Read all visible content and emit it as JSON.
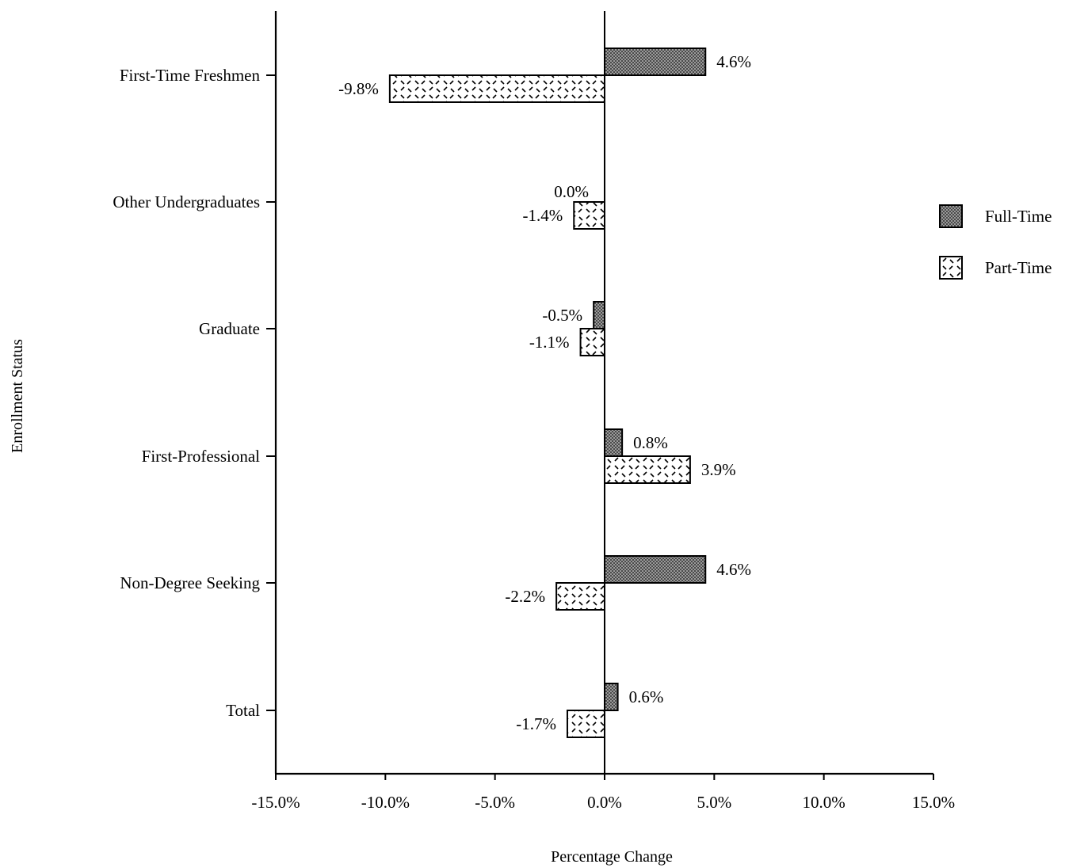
{
  "chart_data": {
    "type": "bar",
    "orientation": "horizontal",
    "categories": [
      "First-Time Freshmen",
      "Other Undergraduates",
      "Graduate",
      "First-Professional",
      "Non-Degree Seeking",
      "Total"
    ],
    "series": [
      {
        "name": "Full-Time",
        "values": [
          4.6,
          0.0,
          -0.5,
          0.8,
          4.6,
          0.6
        ],
        "labels": [
          "4.6%",
          "0.0%",
          "-0.5%",
          "0.8%",
          "4.6%",
          "0.6%"
        ],
        "fill": "dense-dot"
      },
      {
        "name": "Part-Time",
        "values": [
          -9.8,
          -1.4,
          -1.1,
          3.9,
          -2.2,
          -1.7
        ],
        "labels": [
          "-9.8%",
          "-1.4%",
          "-1.1%",
          "3.9%",
          "-2.2%",
          "-1.7%"
        ],
        "fill": "diagonal-dash"
      }
    ],
    "xlim": [
      -15,
      15
    ],
    "xticks": [
      -15,
      -10,
      -5,
      0,
      5,
      10,
      15
    ],
    "xtick_labels": [
      "-15.0%",
      "-10.0%",
      "-5.0%",
      "0.0%",
      "5.0%",
      "10.0%",
      "15.0%"
    ],
    "xlabel": "Percentage Change",
    "ylabel": "Enrollment Status",
    "title": "",
    "legend_position": "right",
    "grid": false,
    "colors": {
      "full_time_fill": "#7a7a7a",
      "part_time_fill": "#ffffff",
      "stroke": "#000000"
    }
  }
}
